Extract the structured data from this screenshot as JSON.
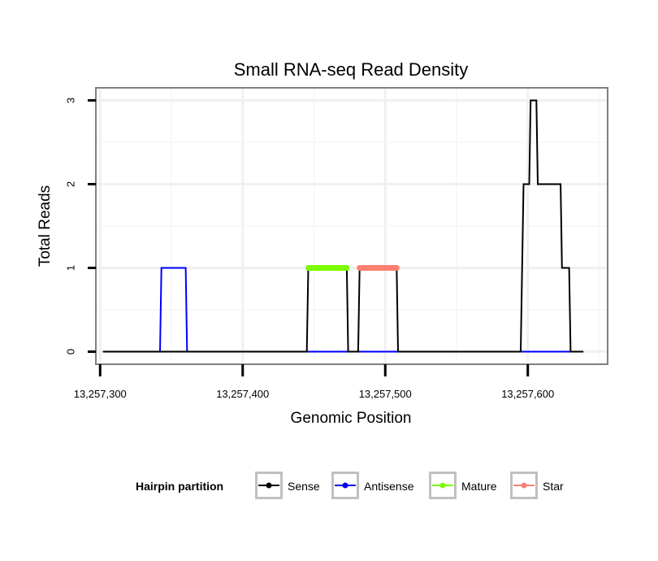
{
  "chart_data": {
    "type": "line",
    "title": "Small RNA-seq Read Density",
    "xlabel": "Genomic Position",
    "ylabel": "Total Reads",
    "xlim": [
      13257297,
      13257656
    ],
    "ylim": [
      -0.15,
      3.15
    ],
    "x_ticks": [
      13257300,
      13257400,
      13257500,
      13257600
    ],
    "x_tick_labels": [
      "13,257,300",
      "13,257,400",
      "13,257,500",
      "13,257,600"
    ],
    "y_ticks": [
      0,
      1,
      2,
      3
    ],
    "y_tick_labels": [
      "0",
      "1",
      "2",
      "3"
    ],
    "grid": true,
    "legend": {
      "title": "Hairpin partition",
      "position": "bottom",
      "entries": [
        {
          "label": "Sense",
          "color": "#000000"
        },
        {
          "label": "Antisense",
          "color": "#0000ff"
        },
        {
          "label": "Mature",
          "color": "#7cfc00"
        },
        {
          "label": "Star",
          "color": "#fa8072"
        }
      ]
    },
    "series": [
      {
        "name": "Sense",
        "color": "#000000",
        "x": [
          13257302,
          13257445,
          13257446,
          13257473,
          13257474,
          13257481,
          13257482,
          13257508,
          13257509,
          13257595,
          13257597,
          13257601,
          13257602,
          13257606,
          13257607,
          13257623,
          13257624,
          13257629,
          13257630,
          13257631,
          13257632,
          13257639
        ],
        "y": [
          0,
          0,
          1,
          1,
          0,
          0,
          1,
          1,
          0,
          0,
          2,
          2,
          3,
          3,
          2,
          2,
          1,
          1,
          0,
          0,
          0,
          0
        ]
      },
      {
        "name": "Antisense",
        "color": "#0000ff",
        "x": [
          13257302,
          13257342,
          13257343,
          13257360,
          13257361,
          13257632
        ],
        "y": [
          0,
          0,
          1,
          1,
          0,
          0
        ]
      },
      {
        "name": "Mature",
        "color": "#7cfc00",
        "x": [
          13257446,
          13257473
        ],
        "y": [
          1,
          1
        ]
      },
      {
        "name": "Star",
        "color": "#fa8072",
        "x": [
          13257482,
          13257508
        ],
        "y": [
          1,
          1
        ]
      }
    ]
  }
}
